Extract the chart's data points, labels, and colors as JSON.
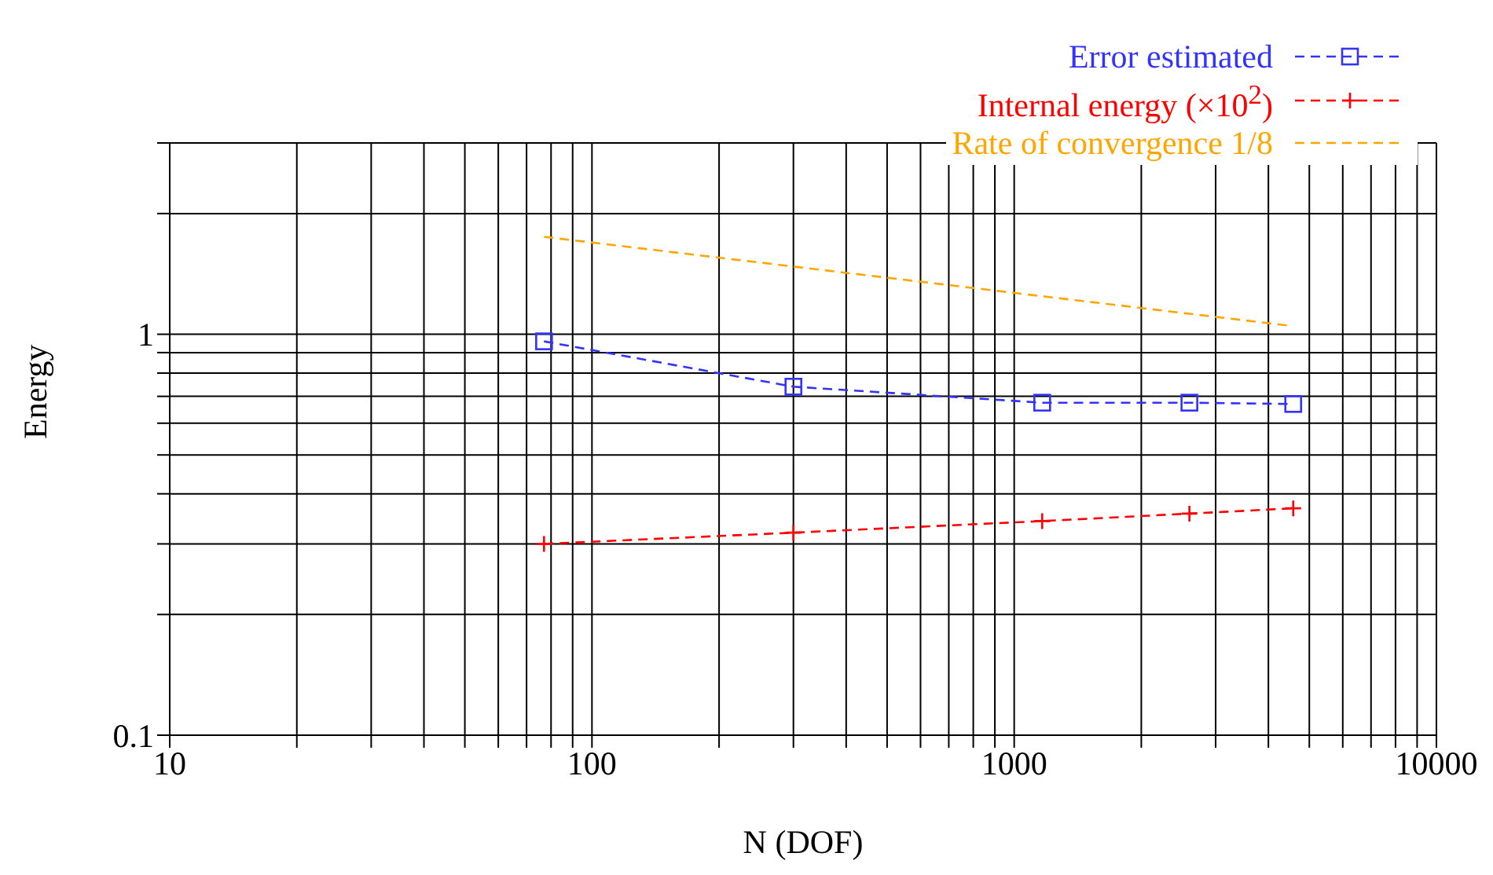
{
  "chart_data": {
    "type": "line",
    "xlabel": "N (DOF)",
    "ylabel": "Energy",
    "log": "xy",
    "grid": true,
    "legend": "top right",
    "xlim": [
      10,
      10000
    ],
    "ylim": [
      0.1,
      3
    ],
    "xticks": [
      10,
      {
        "value": 20,
        "label": null
      },
      {
        "value": 30,
        "label": null
      },
      {
        "value": 40,
        "label": null
      },
      {
        "value": 50,
        "label": null
      },
      {
        "value": 60,
        "label": null
      },
      {
        "value": 70,
        "label": null
      },
      {
        "value": 80,
        "label": null
      },
      {
        "value": 90,
        "label": null
      },
      100,
      {
        "value": 200,
        "label": null
      },
      {
        "value": 300,
        "label": null
      },
      {
        "value": 400,
        "label": null
      },
      {
        "value": 500,
        "label": null
      },
      {
        "value": 600,
        "label": null
      },
      {
        "value": 700,
        "label": null
      },
      {
        "value": 800,
        "label": null
      },
      {
        "value": 900,
        "label": null
      },
      1000,
      {
        "value": 2000,
        "label": null
      },
      {
        "value": 3000,
        "label": null
      },
      {
        "value": 4000,
        "label": null
      },
      {
        "value": 5000,
        "label": null
      },
      {
        "value": 6000,
        "label": null
      },
      {
        "value": 7000,
        "label": null
      },
      {
        "value": 8000,
        "label": null
      },
      {
        "value": 9000,
        "label": null
      },
      10000
    ],
    "yticks": [
      0.1,
      {
        "value": 0.2,
        "label": null
      },
      {
        "value": 0.3,
        "label": null
      },
      {
        "value": 0.4,
        "label": null
      },
      {
        "value": 0.5,
        "label": null
      },
      {
        "value": 0.6,
        "label": null
      },
      {
        "value": 0.7,
        "label": null
      },
      {
        "value": 0.8,
        "label": null
      },
      {
        "value": 0.9,
        "label": null
      },
      1,
      {
        "value": 2,
        "label": null
      },
      {
        "value": 3,
        "label": null
      }
    ],
    "series": [
      {
        "name": "Error estimated",
        "color": "#3333ff",
        "marker": "square",
        "line_style": "dashed",
        "x": [
          77,
          300,
          1165,
          2600,
          4580
        ],
        "values": [
          0.96,
          0.74,
          0.675,
          0.675,
          0.67
        ]
      },
      {
        "name": "Internal energy (×10$^{2}$)",
        "color": "#ff0000",
        "marker": "cross",
        "line_style": "dashed",
        "x": [
          77,
          300,
          1165,
          2600,
          4580
        ],
        "values": [
          0.3,
          0.32,
          0.342,
          0.357,
          0.368
        ]
      },
      {
        "name": "Rate of convergence 1/8",
        "color": "#ffa500",
        "marker": "none",
        "line_style": "dashed",
        "x": [
          77,
          4500
        ],
        "values": [
          1.75,
          1.05
        ]
      }
    ]
  }
}
